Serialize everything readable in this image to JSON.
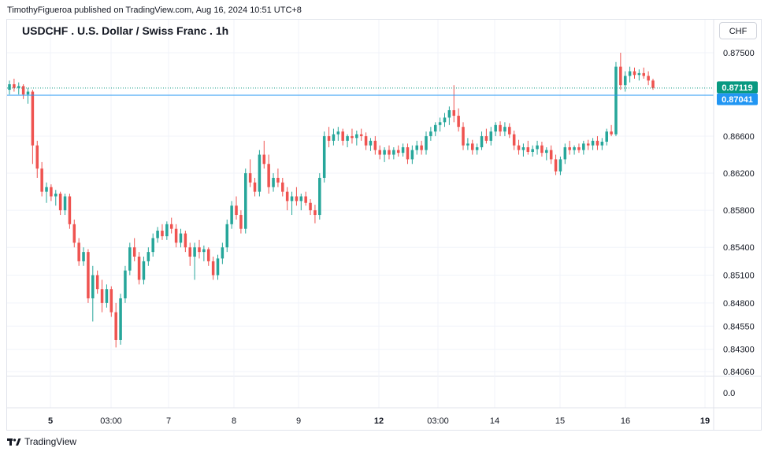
{
  "header": {
    "published": "TimothyFigueroa published on TradingView.com, Aug 16, 2024 10:51 UTC+8"
  },
  "toolbar": {
    "currency_label": "CHF"
  },
  "footer": {
    "brand": "TradingView"
  },
  "colors": {
    "up": "#26a69a",
    "down": "#ef5350",
    "grid": "#f0f3fa",
    "hline": "#2196f3",
    "last_price": "#089981",
    "hline_label": "#2196f3"
  },
  "chart_data": {
    "type": "candlestick",
    "title": "USDCHF . U.S. Dollar / Swiss Franc . 1h",
    "price_ticks": [
      "0.87500",
      "0.86600",
      "0.86200",
      "0.85800",
      "0.85400",
      "0.85100",
      "0.84800",
      "0.84550",
      "0.84300",
      "0.84060"
    ],
    "price_tick_values": [
      0.875,
      0.866,
      0.862,
      0.858,
      0.854,
      0.851,
      0.848,
      0.8455,
      0.843,
      0.8406
    ],
    "x_ticks": [
      {
        "label": "5",
        "bold": true
      },
      {
        "label": "03:00",
        "bold": false
      },
      {
        "label": "7",
        "bold": false
      },
      {
        "label": "8",
        "bold": false
      },
      {
        "label": "9",
        "bold": false
      },
      {
        "label": "12",
        "bold": true
      },
      {
        "label": "03:00",
        "bold": false
      },
      {
        "label": "14",
        "bold": false
      },
      {
        "label": "15",
        "bold": false
      },
      {
        "label": "16",
        "bold": false
      },
      {
        "label": "19",
        "bold": true
      }
    ],
    "last_price": {
      "value": 0.87119,
      "label": "0.87119"
    },
    "horizontal_line": {
      "value": 0.87041,
      "label": "0.87041"
    },
    "volume_pane": {
      "tick": "0.0"
    },
    "ylim": [
      0.84,
      0.876
    ],
    "candles": [
      [
        0.871,
        0.872,
        0.8705,
        0.8716
      ],
      [
        0.8716,
        0.8722,
        0.8708,
        0.8712
      ],
      [
        0.8712,
        0.8718,
        0.8705,
        0.8714
      ],
      [
        0.8714,
        0.8716,
        0.87,
        0.8705
      ],
      [
        0.8705,
        0.8712,
        0.8695,
        0.8708
      ],
      [
        0.8708,
        0.871,
        0.863,
        0.865
      ],
      [
        0.865,
        0.8655,
        0.8615,
        0.8625
      ],
      [
        0.8625,
        0.8632,
        0.8595,
        0.86
      ],
      [
        0.86,
        0.861,
        0.8588,
        0.8605
      ],
      [
        0.8605,
        0.8608,
        0.859,
        0.8595
      ],
      [
        0.8595,
        0.8602,
        0.8585,
        0.8598
      ],
      [
        0.8598,
        0.86,
        0.8575,
        0.858
      ],
      [
        0.858,
        0.8598,
        0.8575,
        0.8595
      ],
      [
        0.8595,
        0.8598,
        0.856,
        0.8565
      ],
      [
        0.8565,
        0.857,
        0.854,
        0.8545
      ],
      [
        0.8545,
        0.855,
        0.852,
        0.8525
      ],
      [
        0.8525,
        0.854,
        0.852,
        0.8535
      ],
      [
        0.8535,
        0.8538,
        0.848,
        0.8485
      ],
      [
        0.8485,
        0.852,
        0.846,
        0.851
      ],
      [
        0.851,
        0.8515,
        0.849,
        0.8495
      ],
      [
        0.8495,
        0.8505,
        0.847,
        0.848
      ],
      [
        0.848,
        0.85,
        0.8475,
        0.8495
      ],
      [
        0.8495,
        0.8498,
        0.8465,
        0.847
      ],
      [
        0.847,
        0.848,
        0.8432,
        0.844
      ],
      [
        0.844,
        0.849,
        0.8435,
        0.8485
      ],
      [
        0.8485,
        0.852,
        0.848,
        0.8515
      ],
      [
        0.8515,
        0.8545,
        0.851,
        0.854
      ],
      [
        0.854,
        0.855,
        0.8525,
        0.853
      ],
      [
        0.853,
        0.8535,
        0.85,
        0.8505
      ],
      [
        0.8505,
        0.853,
        0.85,
        0.8525
      ],
      [
        0.8525,
        0.854,
        0.852,
        0.8535
      ],
      [
        0.8535,
        0.8555,
        0.853,
        0.855
      ],
      [
        0.855,
        0.8562,
        0.8545,
        0.8558
      ],
      [
        0.8558,
        0.8565,
        0.8548,
        0.8552
      ],
      [
        0.8552,
        0.8568,
        0.8548,
        0.8565
      ],
      [
        0.8565,
        0.8572,
        0.8555,
        0.856
      ],
      [
        0.856,
        0.8565,
        0.854,
        0.8545
      ],
      [
        0.8545,
        0.856,
        0.854,
        0.8555
      ],
      [
        0.8555,
        0.8558,
        0.8535,
        0.854
      ],
      [
        0.854,
        0.8545,
        0.852,
        0.853
      ],
      [
        0.853,
        0.8545,
        0.8505,
        0.854
      ],
      [
        0.854,
        0.8548,
        0.8528,
        0.8535
      ],
      [
        0.8535,
        0.8542,
        0.8525,
        0.8538
      ],
      [
        0.8538,
        0.854,
        0.852,
        0.8525
      ],
      [
        0.8525,
        0.853,
        0.8505,
        0.851
      ],
      [
        0.851,
        0.8532,
        0.8505,
        0.8528
      ],
      [
        0.8528,
        0.8545,
        0.8522,
        0.854
      ],
      [
        0.854,
        0.857,
        0.8535,
        0.8565
      ],
      [
        0.8565,
        0.859,
        0.856,
        0.8585
      ],
      [
        0.8585,
        0.8595,
        0.857,
        0.8575
      ],
      [
        0.8575,
        0.858,
        0.8555,
        0.856
      ],
      [
        0.856,
        0.8625,
        0.8555,
        0.862
      ],
      [
        0.862,
        0.8635,
        0.8605,
        0.861
      ],
      [
        0.861,
        0.8615,
        0.8595,
        0.86
      ],
      [
        0.86,
        0.8645,
        0.8595,
        0.864
      ],
      [
        0.864,
        0.8655,
        0.8625,
        0.863
      ],
      [
        0.863,
        0.864,
        0.8598,
        0.8605
      ],
      [
        0.8605,
        0.862,
        0.86,
        0.8615
      ],
      [
        0.8615,
        0.8625,
        0.8605,
        0.861
      ],
      [
        0.861,
        0.8615,
        0.8595,
        0.86
      ],
      [
        0.86,
        0.8605,
        0.858,
        0.859
      ],
      [
        0.859,
        0.86,
        0.8575,
        0.8595
      ],
      [
        0.8595,
        0.8605,
        0.8585,
        0.859
      ],
      [
        0.859,
        0.8598,
        0.858,
        0.8595
      ],
      [
        0.8595,
        0.86,
        0.8585,
        0.8588
      ],
      [
        0.8588,
        0.8592,
        0.8575,
        0.858
      ],
      [
        0.858,
        0.8586,
        0.8566,
        0.8575
      ],
      [
        0.8575,
        0.862,
        0.857,
        0.8615
      ],
      [
        0.8615,
        0.8665,
        0.861,
        0.866
      ],
      [
        0.866,
        0.867,
        0.8648,
        0.8655
      ],
      [
        0.8655,
        0.8668,
        0.865,
        0.8662
      ],
      [
        0.8662,
        0.867,
        0.8655,
        0.8665
      ],
      [
        0.8665,
        0.8668,
        0.865,
        0.8655
      ],
      [
        0.8655,
        0.8662,
        0.8648,
        0.866
      ],
      [
        0.866,
        0.8668,
        0.8652,
        0.8658
      ],
      [
        0.8658,
        0.8666,
        0.865,
        0.8662
      ],
      [
        0.8662,
        0.8668,
        0.8655,
        0.866
      ],
      [
        0.866,
        0.8664,
        0.8645,
        0.865
      ],
      [
        0.865,
        0.8658,
        0.8644,
        0.8655
      ],
      [
        0.8655,
        0.866,
        0.864,
        0.8645
      ],
      [
        0.8645,
        0.865,
        0.8635,
        0.864
      ],
      [
        0.864,
        0.8648,
        0.8632,
        0.8645
      ],
      [
        0.8645,
        0.865,
        0.8635,
        0.864
      ],
      [
        0.864,
        0.8648,
        0.8635,
        0.8645
      ],
      [
        0.8645,
        0.865,
        0.8638,
        0.8642
      ],
      [
        0.8642,
        0.8652,
        0.8638,
        0.8648
      ],
      [
        0.8648,
        0.8652,
        0.863,
        0.8635
      ],
      [
        0.8635,
        0.865,
        0.863,
        0.8645
      ],
      [
        0.8645,
        0.8655,
        0.864,
        0.865
      ],
      [
        0.865,
        0.8655,
        0.864,
        0.8645
      ],
      [
        0.8645,
        0.8665,
        0.864,
        0.866
      ],
      [
        0.866,
        0.867,
        0.8655,
        0.8665
      ],
      [
        0.8665,
        0.8675,
        0.866,
        0.8672
      ],
      [
        0.8672,
        0.868,
        0.8665,
        0.8675
      ],
      [
        0.8675,
        0.8685,
        0.867,
        0.868
      ],
      [
        0.868,
        0.8692,
        0.8672,
        0.8688
      ],
      [
        0.8688,
        0.8715,
        0.8675,
        0.8682
      ],
      [
        0.8682,
        0.869,
        0.8665,
        0.867
      ],
      [
        0.867,
        0.8675,
        0.8645,
        0.865
      ],
      [
        0.865,
        0.8658,
        0.8645,
        0.8652
      ],
      [
        0.8652,
        0.8656,
        0.864,
        0.8645
      ],
      [
        0.8645,
        0.8652,
        0.864,
        0.8648
      ],
      [
        0.8648,
        0.8665,
        0.8645,
        0.866
      ],
      [
        0.866,
        0.8668,
        0.8652,
        0.8655
      ],
      [
        0.8655,
        0.867,
        0.865,
        0.8665
      ],
      [
        0.8665,
        0.8675,
        0.866,
        0.8672
      ],
      [
        0.8672,
        0.8676,
        0.866,
        0.8665
      ],
      [
        0.8665,
        0.8675,
        0.866,
        0.867
      ],
      [
        0.867,
        0.8674,
        0.8658,
        0.8662
      ],
      [
        0.8662,
        0.8666,
        0.8645,
        0.865
      ],
      [
        0.865,
        0.8656,
        0.864,
        0.8645
      ],
      [
        0.8645,
        0.8652,
        0.8638,
        0.8648
      ],
      [
        0.8648,
        0.8655,
        0.864,
        0.8643
      ],
      [
        0.8643,
        0.865,
        0.8638,
        0.8646
      ],
      [
        0.8646,
        0.8655,
        0.864,
        0.865
      ],
      [
        0.865,
        0.8654,
        0.8638,
        0.8642
      ],
      [
        0.8642,
        0.8648,
        0.8634,
        0.8645
      ],
      [
        0.8645,
        0.865,
        0.863,
        0.8635
      ],
      [
        0.8635,
        0.864,
        0.8618,
        0.8622
      ],
      [
        0.8622,
        0.8638,
        0.8618,
        0.8635
      ],
      [
        0.8635,
        0.8652,
        0.863,
        0.8648
      ],
      [
        0.8648,
        0.8655,
        0.864,
        0.8645
      ],
      [
        0.8645,
        0.865,
        0.864,
        0.8648
      ],
      [
        0.8648,
        0.8652,
        0.8642,
        0.8645
      ],
      [
        0.8645,
        0.8655,
        0.864,
        0.8652
      ],
      [
        0.8652,
        0.8656,
        0.8645,
        0.865
      ],
      [
        0.865,
        0.8658,
        0.8645,
        0.8655
      ],
      [
        0.8655,
        0.866,
        0.8645,
        0.865
      ],
      [
        0.865,
        0.8658,
        0.8645,
        0.8654
      ],
      [
        0.8654,
        0.8668,
        0.865,
        0.8665
      ],
      [
        0.8665,
        0.8672,
        0.866,
        0.8662
      ],
      [
        0.8662,
        0.874,
        0.866,
        0.8735
      ],
      [
        0.8735,
        0.875,
        0.871,
        0.8715
      ],
      [
        0.8715,
        0.873,
        0.8708,
        0.8725
      ],
      [
        0.8725,
        0.8735,
        0.8718,
        0.873
      ],
      [
        0.873,
        0.8734,
        0.8722,
        0.8726
      ],
      [
        0.8726,
        0.8732,
        0.872,
        0.8728
      ],
      [
        0.8728,
        0.8734,
        0.8722,
        0.8725
      ],
      [
        0.8725,
        0.873,
        0.8715,
        0.872
      ],
      [
        0.872,
        0.8722,
        0.871,
        0.8712
      ]
    ]
  }
}
